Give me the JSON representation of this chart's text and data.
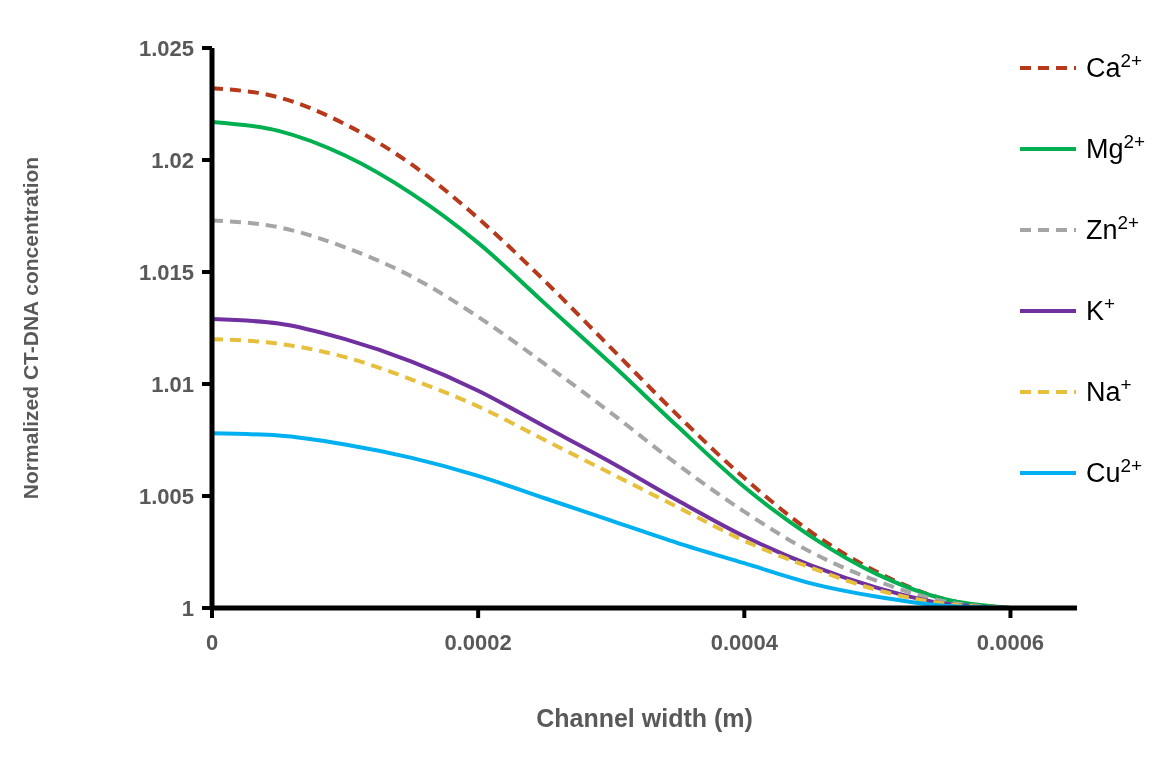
{
  "chart_data": {
    "type": "line",
    "xlabel": "Channel width (m)",
    "ylabel": "Normalized CT-DNA concentration",
    "x": [
      0,
      5e-05,
      0.0001,
      0.00015,
      0.0002,
      0.00025,
      0.0003,
      0.00035,
      0.0004,
      0.00045,
      0.0005,
      0.00055,
      0.0006
    ],
    "series": [
      {
        "name": "Ca$^{2+}$",
        "color": "#b5391a",
        "line_style": "dashed",
        "values": [
          1.0232,
          1.0228,
          1.0216,
          1.0198,
          1.0174,
          1.0146,
          1.0116,
          1.0086,
          1.0058,
          1.0034,
          1.0016,
          1.0004,
          1.0
        ]
      },
      {
        "name": "Mg$^{2+}$",
        "color": "#00b050",
        "line_style": "solid",
        "values": [
          1.0217,
          1.0213,
          1.0202,
          1.0185,
          1.0163,
          1.0136,
          1.0109,
          1.0081,
          1.0054,
          1.0032,
          1.0015,
          1.0004,
          1.0
        ]
      },
      {
        "name": "Zn$^{2+}$",
        "color": "#a5a5a5",
        "line_style": "dashed",
        "values": [
          1.0173,
          1.017,
          1.0161,
          1.0148,
          1.013,
          1.0109,
          1.0087,
          1.0064,
          1.0043,
          1.0025,
          1.0012,
          1.0003,
          1.0
        ]
      },
      {
        "name": "K$^{+}$",
        "color": "#7030a0",
        "line_style": "solid",
        "values": [
          1.0129,
          1.0127,
          1.012,
          1.011,
          1.0097,
          1.0081,
          1.0065,
          1.0048,
          1.0032,
          1.0019,
          1.0009,
          1.0002,
          1.0
        ]
      },
      {
        "name": "Na$^{+}$",
        "color": "#e6bf3c",
        "line_style": "dashed",
        "values": [
          1.012,
          1.0118,
          1.0112,
          1.0102,
          1.009,
          1.0075,
          1.006,
          1.0045,
          1.003,
          1.0018,
          1.0008,
          1.0002,
          1.0
        ]
      },
      {
        "name": "Cu$^{2+}$",
        "color": "#00b0f0",
        "line_style": "solid",
        "values": [
          1.0078,
          1.0077,
          1.0073,
          1.0067,
          1.0059,
          1.0049,
          1.0039,
          1.0029,
          1.002,
          1.0011,
          1.0005,
          1.0001,
          1.0
        ]
      }
    ],
    "xlim": [
      0,
      0.00065
    ],
    "xticks": [
      0,
      0.0002,
      0.0004,
      0.0006
    ],
    "ylim": [
      1,
      1.025
    ],
    "yticks": [
      1,
      1.005,
      1.01,
      1.015,
      1.02,
      1.025
    ],
    "grid": false,
    "legend": "right"
  }
}
